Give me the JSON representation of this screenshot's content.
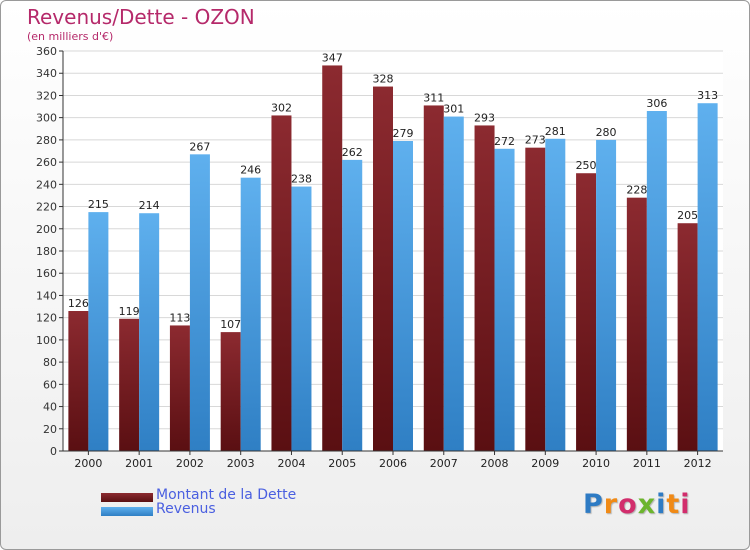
{
  "chart_data": {
    "type": "bar",
    "title": "Revenus/Dette - OZON",
    "subtitle": "(en milliers d'€)",
    "xlabel": "",
    "ylabel": "",
    "categories": [
      "2000",
      "2001",
      "2002",
      "2003",
      "2004",
      "2005",
      "2006",
      "2007",
      "2008",
      "2009",
      "2010",
      "2011",
      "2012"
    ],
    "series": [
      {
        "name": "Montant de la Dette",
        "color": "#7a1a1e",
        "values": [
          126,
          119,
          113,
          107,
          302,
          347,
          328,
          311,
          293,
          273,
          250,
          228,
          205
        ]
      },
      {
        "name": "Revenus",
        "color": "#3d8fd6",
        "values": [
          215,
          214,
          267,
          246,
          238,
          262,
          279,
          301,
          272,
          281,
          280,
          306,
          313
        ]
      }
    ],
    "ylim": [
      0,
      360
    ],
    "yticks": [
      0,
      20,
      40,
      60,
      80,
      100,
      120,
      140,
      160,
      180,
      200,
      220,
      240,
      260,
      280,
      300,
      320,
      340,
      360
    ],
    "grid": true,
    "legend_position": "bottom-left"
  },
  "logo": {
    "letters": [
      "P",
      "r",
      "o",
      "x",
      "i",
      "t",
      "i"
    ],
    "colors": [
      "#2e7bc4",
      "#f08a16",
      "#d22d6c",
      "#6cb52d",
      "#2e7bc4",
      "#f08a16",
      "#d22d6c"
    ]
  }
}
